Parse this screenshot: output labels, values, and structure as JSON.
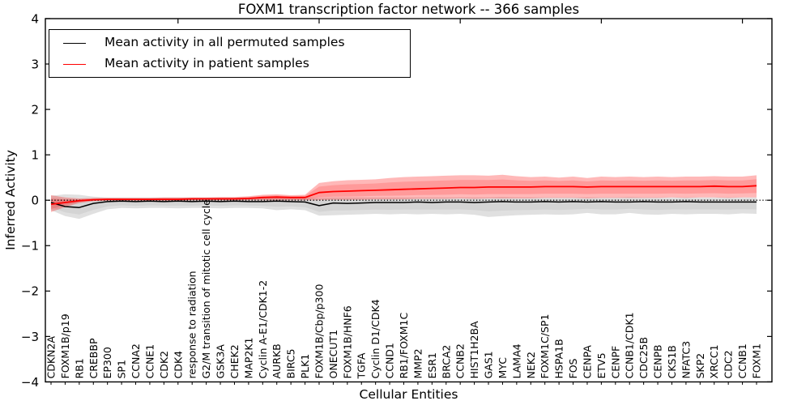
{
  "chart_data": {
    "type": "line",
    "title": "FOXM1 transcription factor network -- 366 samples",
    "xlabel": "Cellular Entities",
    "ylabel": "Inferred Activity",
    "ylim": [
      -4,
      4
    ],
    "yticks": [
      4,
      3,
      2,
      1,
      0,
      -1,
      -2,
      -3,
      -4
    ],
    "grid": false,
    "legend_position": "upper left",
    "zero_line": 0,
    "categories": [
      "CDKN2A",
      "FOXM1B/p19",
      "RB1",
      "CREBBP",
      "EP300",
      "SP1",
      "CCNA2",
      "CCNE1",
      "CDK2",
      "CDK4",
      "response to radiation",
      "G2/M transition of mitotic cell cycle",
      "GSK3A",
      "CHEK2",
      "MAP2K1",
      "Cyclin A-E1/CDK1-2",
      "AURKB",
      "BIRC5",
      "PLK1",
      "FOXM1B/Cbp/p300",
      "ONECUT1",
      "FOXM1B/HNF6",
      "TGFA",
      "Cyclin D1/CDK4",
      "CCND1",
      "RB1/FOXM1C",
      "MMP2",
      "ESR1",
      "BRCA2",
      "CCNB2",
      "HIST1H2BA",
      "GAS1",
      "MYC",
      "LAMA4",
      "NEK2",
      "FOXM1C/SP1",
      "HSPA1B",
      "FOS",
      "CENPA",
      "ETV5",
      "CENPF",
      "CCNB1/CDK1",
      "CDC25B",
      "CENPB",
      "CKS1B",
      "NFATC3",
      "SKP2",
      "XRCC1",
      "CDC2",
      "CCNB1",
      "FOXM1"
    ],
    "series": [
      {
        "name": "Mean activity in all permuted samples",
        "color": "#000000",
        "values": [
          -0.05,
          -0.14,
          -0.16,
          -0.07,
          -0.03,
          -0.02,
          -0.03,
          -0.02,
          -0.03,
          -0.02,
          -0.03,
          -0.02,
          -0.03,
          -0.02,
          -0.03,
          -0.03,
          -0.02,
          -0.03,
          -0.04,
          -0.12,
          -0.06,
          -0.07,
          -0.06,
          -0.05,
          -0.05,
          -0.05,
          -0.04,
          -0.05,
          -0.04,
          -0.04,
          -0.05,
          -0.04,
          -0.03,
          -0.04,
          -0.04,
          -0.03,
          -0.04,
          -0.03,
          -0.04,
          -0.03,
          -0.04,
          -0.04,
          -0.03,
          -0.04,
          -0.04,
          -0.03,
          -0.04,
          -0.04,
          -0.04,
          -0.04,
          -0.04
        ],
        "band_low": [
          -0.22,
          -0.35,
          -0.41,
          -0.3,
          -0.2,
          -0.17,
          -0.18,
          -0.17,
          -0.17,
          -0.18,
          -0.17,
          -0.17,
          -0.18,
          -0.17,
          -0.17,
          -0.18,
          -0.22,
          -0.2,
          -0.22,
          -0.34,
          -0.33,
          -0.32,
          -0.31,
          -0.3,
          -0.31,
          -0.3,
          -0.31,
          -0.3,
          -0.31,
          -0.3,
          -0.32,
          -0.37,
          -0.35,
          -0.33,
          -0.32,
          -0.31,
          -0.32,
          -0.31,
          -0.28,
          -0.31,
          -0.31,
          -0.28,
          -0.31,
          -0.32,
          -0.3,
          -0.31,
          -0.3,
          -0.3,
          -0.31,
          -0.29,
          -0.3
        ],
        "band_high": [
          0.1,
          0.13,
          0.12,
          0.08,
          0.06,
          0.06,
          0.06,
          0.06,
          0.06,
          0.06,
          0.06,
          0.06,
          0.06,
          0.06,
          0.06,
          0.07,
          0.09,
          0.07,
          0.06,
          0.05,
          0.06,
          0.06,
          0.06,
          0.06,
          0.06,
          0.06,
          0.06,
          0.06,
          0.06,
          0.06,
          0.06,
          0.06,
          0.07,
          0.06,
          0.06,
          0.06,
          0.06,
          0.06,
          0.06,
          0.06,
          0.06,
          0.07,
          0.06,
          0.06,
          0.06,
          0.06,
          0.06,
          0.06,
          0.06,
          0.06,
          0.06
        ]
      },
      {
        "name": "Mean activity in patient samples",
        "color": "#ff0000",
        "values": [
          -0.09,
          -0.05,
          -0.01,
          0.01,
          0.02,
          0.02,
          0.02,
          0.02,
          0.02,
          0.02,
          0.03,
          0.03,
          0.03,
          0.03,
          0.04,
          0.06,
          0.07,
          0.06,
          0.06,
          0.17,
          0.19,
          0.2,
          0.21,
          0.22,
          0.23,
          0.24,
          0.25,
          0.26,
          0.27,
          0.28,
          0.28,
          0.29,
          0.29,
          0.29,
          0.29,
          0.3,
          0.3,
          0.3,
          0.29,
          0.3,
          0.3,
          0.3,
          0.3,
          0.3,
          0.3,
          0.3,
          0.3,
          0.31,
          0.3,
          0.3,
          0.32
        ],
        "band_low": [
          -0.26,
          -0.15,
          -0.06,
          -0.02,
          -0.01,
          -0.01,
          -0.01,
          -0.01,
          -0.01,
          -0.01,
          0.0,
          0.0,
          0.0,
          0.0,
          0.0,
          0.0,
          0.0,
          0.0,
          0.0,
          0.0,
          0.01,
          0.01,
          0.01,
          0.02,
          0.02,
          0.02,
          0.03,
          0.03,
          0.03,
          0.04,
          0.03,
          0.04,
          0.04,
          0.04,
          0.04,
          0.05,
          0.05,
          0.05,
          0.04,
          0.05,
          0.05,
          0.05,
          0.05,
          0.05,
          0.06,
          0.05,
          0.06,
          0.06,
          0.05,
          0.06,
          0.06
        ],
        "band_high": [
          0.11,
          0.06,
          0.04,
          0.05,
          0.05,
          0.05,
          0.05,
          0.05,
          0.06,
          0.06,
          0.06,
          0.06,
          0.07,
          0.07,
          0.09,
          0.12,
          0.13,
          0.11,
          0.12,
          0.38,
          0.42,
          0.44,
          0.45,
          0.46,
          0.49,
          0.51,
          0.52,
          0.53,
          0.54,
          0.55,
          0.55,
          0.54,
          0.56,
          0.53,
          0.51,
          0.52,
          0.5,
          0.52,
          0.49,
          0.52,
          0.51,
          0.52,
          0.51,
          0.52,
          0.51,
          0.52,
          0.52,
          0.53,
          0.52,
          0.52,
          0.55
        ]
      }
    ]
  }
}
